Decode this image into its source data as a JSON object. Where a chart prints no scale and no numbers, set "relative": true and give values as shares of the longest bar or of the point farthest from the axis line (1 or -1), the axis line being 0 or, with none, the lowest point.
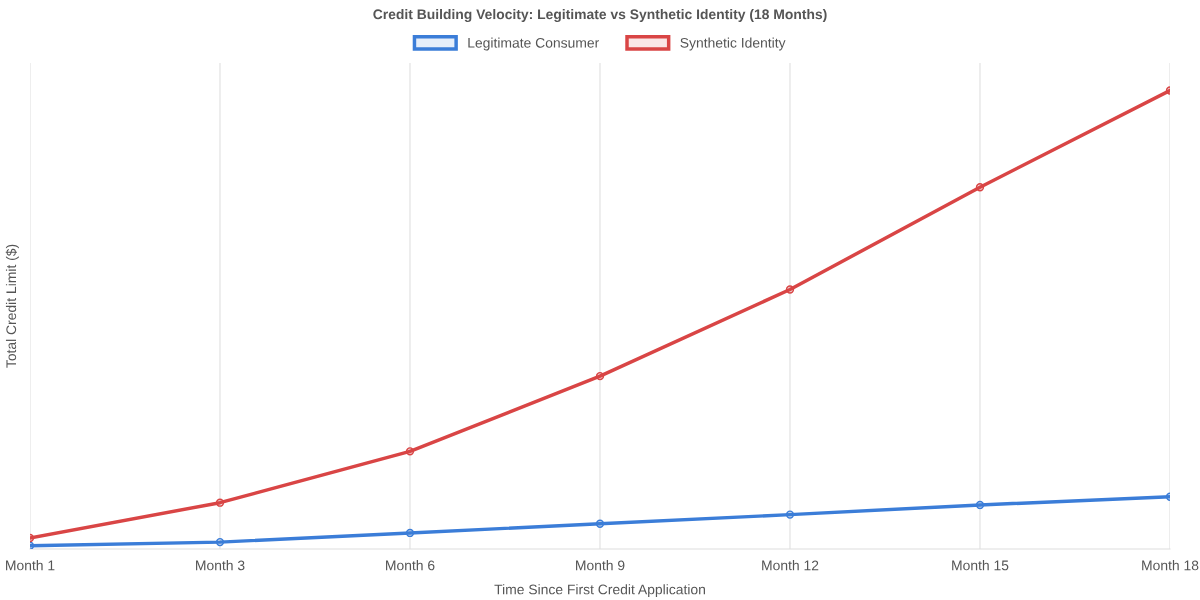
{
  "chart_data": {
    "type": "line",
    "title": "Credit Building Velocity: Legitimate vs Synthetic Identity (18 Months)",
    "xlabel": "Time Since First Credit Application",
    "ylabel": "Total Credit Limit ($)",
    "categories": [
      "Month 1",
      "Month 3",
      "Month 6",
      "Month 9",
      "Month 12",
      "Month 15",
      "Month 18"
    ],
    "relative": true,
    "series": [
      {
        "name": "Legitimate Consumer",
        "color": "#3b7dd8",
        "values": [
          0.007,
          0.015,
          0.035,
          0.055,
          0.075,
          0.096,
          0.114
        ]
      },
      {
        "name": "Synthetic Identity",
        "color": "#d94545",
        "values": [
          0.024,
          0.101,
          0.213,
          0.377,
          0.566,
          0.789,
          1
        ]
      }
    ],
    "grid": "x",
    "legend": "top",
    "marker": "circle",
    "line_style": "solid"
  }
}
